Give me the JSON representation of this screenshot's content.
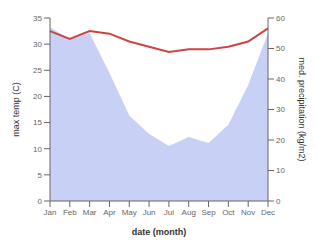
{
  "chart_data": {
    "type": "line",
    "xlabel": "date (month)",
    "ylabel": "max temp (C)",
    "y2label": "med. precipitation (kg/m2)",
    "categories": [
      "Jan",
      "Feb",
      "Mar",
      "Apr",
      "May",
      "Jun",
      "Jul",
      "Aug",
      "Sep",
      "Oct",
      "Nov",
      "Dec"
    ],
    "series": [
      {
        "type": "area",
        "axis": "y2",
        "color": "#c8d0f5",
        "values": [
          57,
          53,
          55,
          42,
          28,
          22,
          18,
          21,
          19,
          25,
          38,
          55
        ]
      },
      {
        "type": "line",
        "axis": "y",
        "color": "#cc4444",
        "values": [
          32.5,
          31.0,
          32.5,
          32.0,
          30.5,
          29.5,
          28.5,
          29.0,
          29.0,
          29.5,
          30.5,
          33.0
        ]
      }
    ],
    "ylim": [
      0,
      35
    ],
    "yticks": [
      0,
      5,
      10,
      15,
      20,
      25,
      30,
      35
    ],
    "y2lim": [
      0,
      60
    ],
    "y2ticks": [
      0,
      10,
      20,
      30,
      40,
      50,
      60
    ],
    "grid": false
  }
}
